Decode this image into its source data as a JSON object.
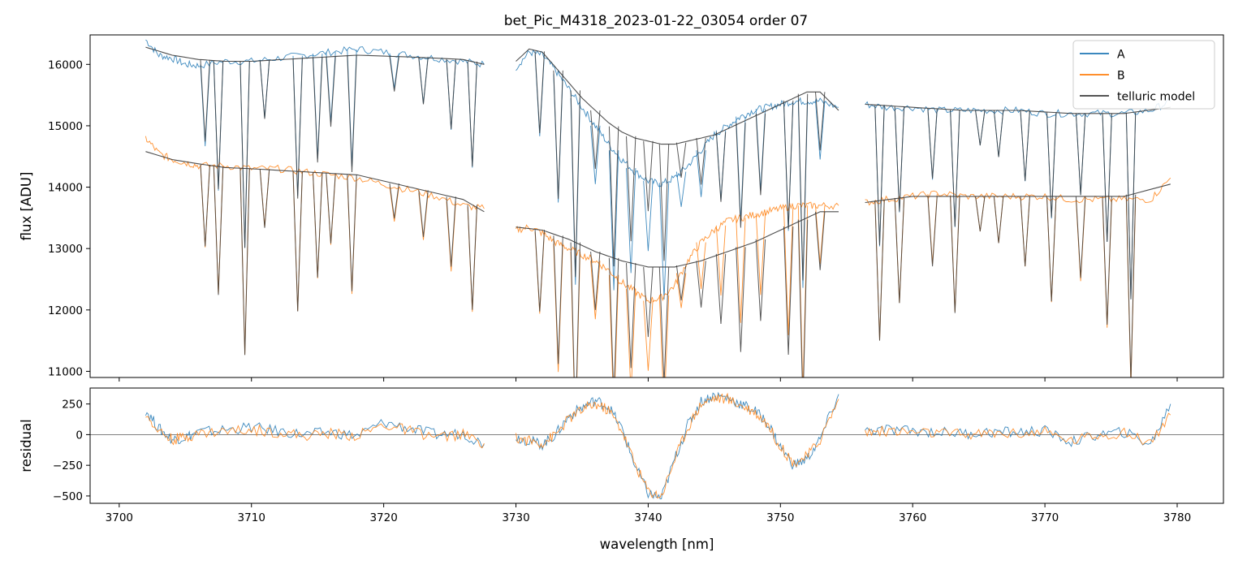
{
  "figure": {
    "title": "bet_Pic_M4318_2023-01-22_03054  order 07"
  },
  "colors": {
    "A": "#1f77b4",
    "B": "#ff7f0e",
    "model": "#3b3b3b"
  },
  "chart_data": [
    {
      "type": "line",
      "panel": "top",
      "title": "bet_Pic_M4318_2023-01-22_03054  order 07",
      "xlabel": "",
      "ylabel": "flux [ADU]",
      "xlim": [
        3697.8,
        3783.5
      ],
      "ylim": [
        10900,
        16480
      ],
      "xticks": [
        3700,
        3710,
        3720,
        3730,
        3740,
        3750,
        3760,
        3770,
        3780
      ],
      "yticks": [
        11000,
        12000,
        13000,
        14000,
        15000,
        16000
      ],
      "ytick_labels": [
        "11000",
        "12000",
        "13000",
        "14000",
        "15000",
        "16000"
      ],
      "gaps": [
        [
          3727.8,
          3729.8
        ],
        [
          3754.5,
          3756.3
        ]
      ],
      "legend": {
        "position": "top-right",
        "entries": [
          "A",
          "B",
          "telluric model"
        ]
      },
      "series": [
        {
          "name": "A",
          "x": [
            3702,
            3703,
            3704,
            3705,
            3706,
            3708,
            3710,
            3712,
            3714,
            3716,
            3718,
            3720,
            3722,
            3724,
            3726,
            3727.6,
            3730,
            3731,
            3732,
            3733,
            3734,
            3735,
            3736,
            3737,
            3738,
            3739,
            3740,
            3741,
            3742,
            3743,
            3744,
            3745,
            3746,
            3747,
            3748,
            3749,
            3750,
            3751,
            3752,
            3753,
            3754.4,
            3756.4,
            3758,
            3760,
            3762,
            3764,
            3766,
            3768,
            3770,
            3772,
            3774,
            3776,
            3778,
            3779.5
          ],
          "values": [
            16400,
            16150,
            16100,
            16000,
            15980,
            16050,
            16050,
            16100,
            16150,
            16200,
            16250,
            16200,
            16150,
            16100,
            16050,
            16000,
            15950,
            16200,
            16150,
            15900,
            15600,
            15300,
            15000,
            14700,
            14450,
            14250,
            14100,
            14050,
            14150,
            14350,
            14600,
            14850,
            15000,
            15150,
            15250,
            15300,
            15350,
            15400,
            15400,
            15400,
            15300,
            15350,
            15300,
            15300,
            15250,
            15250,
            15250,
            15250,
            15200,
            15200,
            15200,
            15200,
            15250,
            15400
          ]
        },
        {
          "name": "B",
          "x": [
            3702,
            3703,
            3704,
            3705,
            3706,
            3708,
            3710,
            3712,
            3714,
            3716,
            3718,
            3720,
            3722,
            3724,
            3726,
            3727.6,
            3730,
            3731,
            3732,
            3733,
            3734,
            3735,
            3736,
            3737,
            3738,
            3739,
            3740,
            3741,
            3742,
            3743,
            3744,
            3745,
            3746,
            3747,
            3748,
            3749,
            3750,
            3751,
            3752,
            3753,
            3754.4,
            3756.4,
            3758,
            3760,
            3762,
            3764,
            3766,
            3768,
            3770,
            3772,
            3774,
            3776,
            3778,
            3779.5
          ],
          "values": [
            14800,
            14550,
            14450,
            14400,
            14350,
            14350,
            14300,
            14300,
            14250,
            14200,
            14150,
            14050,
            13950,
            13850,
            13700,
            13650,
            13300,
            13350,
            13250,
            13100,
            13000,
            12900,
            12800,
            12650,
            12450,
            12300,
            12150,
            12200,
            12400,
            12800,
            13100,
            13300,
            13450,
            13500,
            13550,
            13600,
            13650,
            13700,
            13700,
            13700,
            13700,
            13750,
            13800,
            13850,
            13900,
            13850,
            13850,
            13850,
            13850,
            13800,
            13800,
            13800,
            13800,
            14150
          ]
        },
        {
          "name": "telluric model",
          "x": [
            3702,
            3704,
            3706,
            3708,
            3710,
            3714,
            3718,
            3722,
            3726,
            3727.6,
            3730,
            3731,
            3732,
            3733,
            3734,
            3735,
            3736,
            3737,
            3738,
            3739,
            3740,
            3741,
            3742,
            3743,
            3744,
            3745,
            3746,
            3747,
            3748,
            3749,
            3750,
            3751,
            3752,
            3753,
            3754.4,
            3756.4,
            3760,
            3764,
            3768,
            3772,
            3776,
            3779.5
          ],
          "values": [
            16280,
            16150,
            16080,
            16050,
            16050,
            16100,
            16150,
            16120,
            16080,
            16000,
            16050,
            16250,
            16200,
            15950,
            15700,
            15450,
            15250,
            15050,
            14900,
            14800,
            14750,
            14700,
            14700,
            14750,
            14800,
            14850,
            14950,
            15050,
            15150,
            15250,
            15350,
            15450,
            15550,
            15550,
            15250,
            15350,
            15300,
            15250,
            15250,
            15200,
            15200,
            15300
          ]
        },
        {
          "name": "telluric model",
          "x": [
            3702,
            3704,
            3706,
            3708,
            3710,
            3714,
            3718,
            3722,
            3726,
            3727.6,
            3730,
            3732,
            3734,
            3736,
            3738,
            3740,
            3742,
            3744,
            3746,
            3748,
            3750,
            3752,
            3753,
            3754.4,
            3756.4,
            3760,
            3764,
            3768,
            3772,
            3776,
            3779.5
          ],
          "values": [
            14580,
            14450,
            14380,
            14320,
            14300,
            14250,
            14200,
            14000,
            13800,
            13600,
            13350,
            13300,
            13150,
            12950,
            12800,
            12700,
            12700,
            12800,
            12950,
            13100,
            13300,
            13500,
            13600,
            13600,
            13750,
            13850,
            13850,
            13850,
            13850,
            13850,
            14050
          ]
        }
      ]
    },
    {
      "type": "line",
      "panel": "bottom",
      "xlabel": "wavelength [nm]",
      "ylabel": "residual",
      "xlim": [
        3697.8,
        3783.5
      ],
      "ylim": [
        -560,
        380
      ],
      "xticks": [
        3700,
        3710,
        3720,
        3730,
        3740,
        3750,
        3760,
        3770,
        3780
      ],
      "xtick_labels": [
        "3700",
        "3710",
        "3720",
        "3730",
        "3740",
        "3750",
        "3760",
        "3770",
        "3780"
      ],
      "yticks": [
        -500,
        -250,
        0,
        250
      ],
      "ytick_labels": [
        "−500",
        "−250",
        "0",
        "250"
      ],
      "zero_line": true,
      "gaps": [
        [
          3727.8,
          3729.8
        ],
        [
          3754.5,
          3756.3
        ]
      ],
      "series": [
        {
          "name": "A",
          "x": [
            3702,
            3703,
            3704,
            3705,
            3706,
            3708,
            3710,
            3712,
            3714,
            3716,
            3718,
            3720,
            3722,
            3724,
            3726,
            3727.6,
            3730,
            3731,
            3732,
            3733,
            3734,
            3735,
            3736,
            3737,
            3738,
            3739,
            3740,
            3741,
            3742,
            3743,
            3744,
            3745,
            3746,
            3747,
            3748,
            3749,
            3750,
            3751,
            3752,
            3753,
            3754.4,
            3756.4,
            3758,
            3760,
            3762,
            3764,
            3766,
            3768,
            3770,
            3772,
            3774,
            3776,
            3778,
            3779.5
          ],
          "values": [
            200,
            50,
            -40,
            -20,
            20,
            40,
            60,
            30,
            0,
            20,
            -10,
            100,
            50,
            0,
            10,
            -80,
            -20,
            -50,
            -80,
            0,
            150,
            220,
            280,
            230,
            50,
            -250,
            -480,
            -520,
            -200,
            80,
            270,
            320,
            300,
            250,
            200,
            100,
            -100,
            -250,
            -200,
            -40,
            330,
            30,
            40,
            30,
            20,
            10,
            20,
            20,
            30,
            -60,
            0,
            20,
            -80,
            250
          ]
        },
        {
          "name": "B",
          "x": [
            3702,
            3703,
            3704,
            3705,
            3706,
            3708,
            3710,
            3712,
            3714,
            3716,
            3718,
            3720,
            3722,
            3724,
            3726,
            3727.6,
            3730,
            3731,
            3732,
            3733,
            3734,
            3735,
            3736,
            3737,
            3738,
            3739,
            3740,
            3741,
            3742,
            3743,
            3744,
            3745,
            3746,
            3747,
            3748,
            3749,
            3750,
            3751,
            3752,
            3753,
            3754.4,
            3756.4,
            3758,
            3760,
            3762,
            3764,
            3766,
            3768,
            3770,
            3772,
            3774,
            3776,
            3778,
            3779.5
          ],
          "values": [
            170,
            30,
            -40,
            -20,
            10,
            30,
            40,
            20,
            -10,
            10,
            -10,
            80,
            30,
            -20,
            0,
            -70,
            -30,
            -50,
            -70,
            0,
            130,
            200,
            250,
            200,
            40,
            -240,
            -460,
            -500,
            -200,
            60,
            250,
            300,
            290,
            240,
            190,
            90,
            -100,
            -230,
            -180,
            -40,
            290,
            20,
            30,
            20,
            10,
            0,
            10,
            10,
            20,
            -50,
            0,
            10,
            -60,
            160
          ]
        }
      ]
    }
  ]
}
